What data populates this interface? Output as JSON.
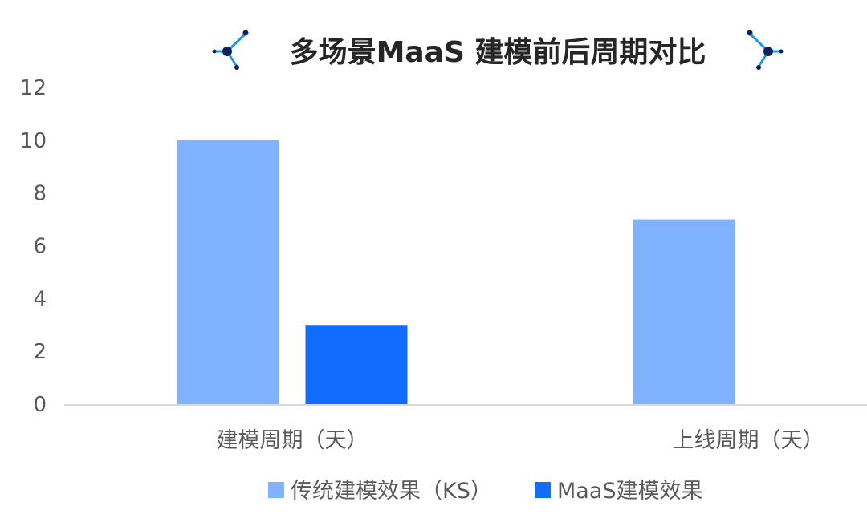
{
  "chart_data": {
    "type": "bar",
    "title": "多场景MaaS 建模前后周期对比",
    "categories": [
      "建模周期（天）",
      "上线周期（天）"
    ],
    "series": [
      {
        "name": "传统建模效果（KS）",
        "values": [
          10,
          7
        ],
        "color": "#7FB3FF"
      },
      {
        "name": "MaaS建模效果",
        "values": [
          3,
          null
        ],
        "color": "#126DFF"
      }
    ],
    "ylim": [
      0,
      12
    ],
    "yticks": [
      0,
      2,
      4,
      6,
      8,
      10,
      12
    ],
    "xlabel": "",
    "ylabel": "",
    "grid": false,
    "legend": "bottom",
    "title_decoration": "molecule-icon"
  }
}
